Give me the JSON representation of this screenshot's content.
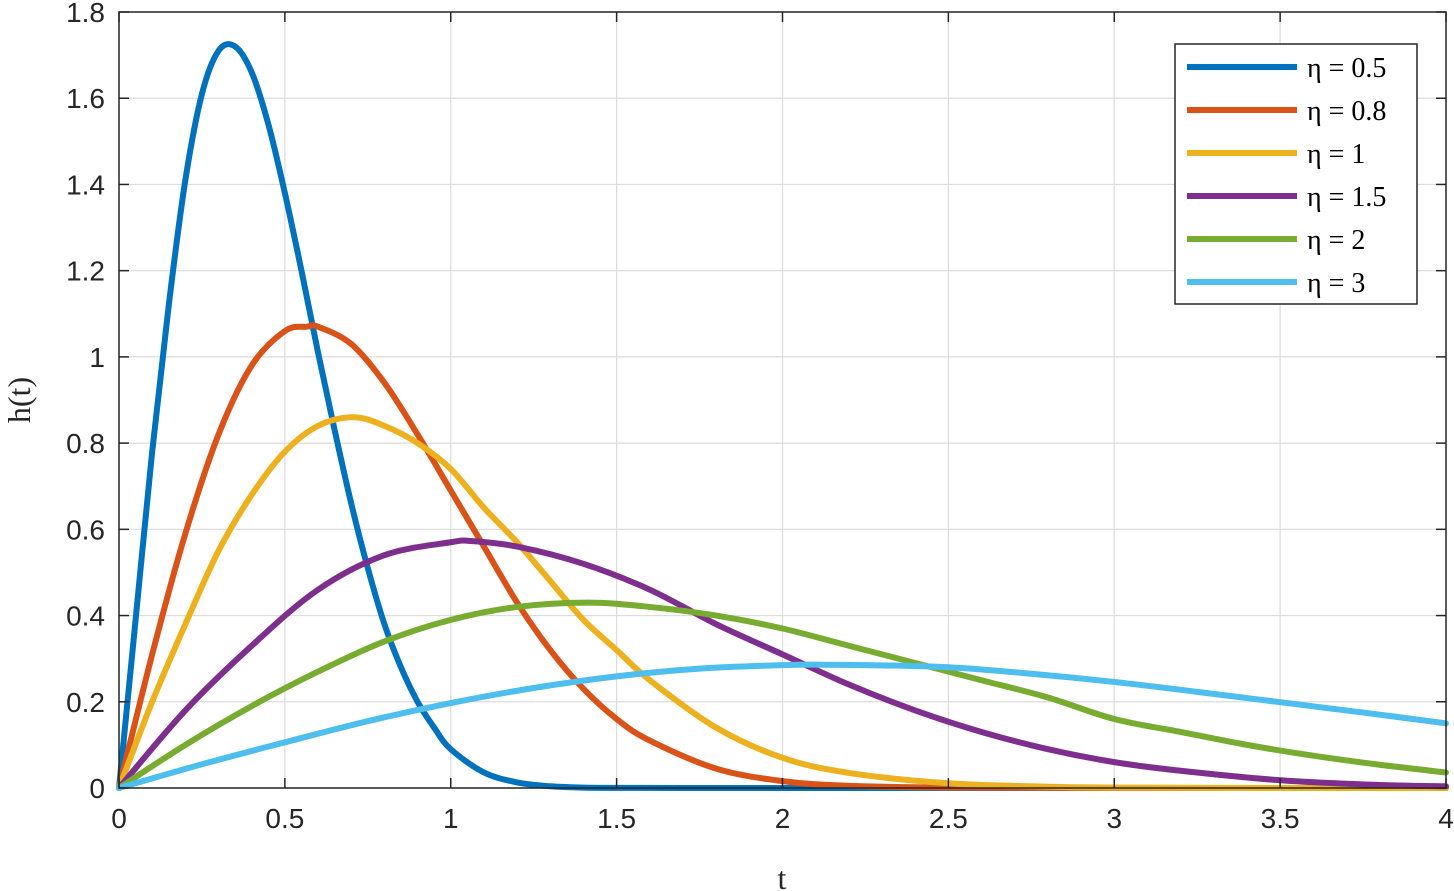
{
  "chart_data": {
    "type": "line",
    "title": "",
    "xlabel": "t",
    "ylabel": "h(t)",
    "xlim": [
      0,
      4
    ],
    "ylim": [
      0,
      1.8
    ],
    "xticks": [
      0,
      0.5,
      1,
      1.5,
      2,
      2.5,
      3,
      3.5,
      4
    ],
    "xtick_labels": [
      "0",
      "0.5",
      "1",
      "1.5",
      "2",
      "2.5",
      "3",
      "3.5",
      "4"
    ],
    "yticks": [
      0,
      0.2,
      0.4,
      0.6,
      0.8,
      1,
      1.2,
      1.4,
      1.6,
      1.8
    ],
    "ytick_labels": [
      "0",
      "0.2",
      "0.4",
      "0.6",
      "0.8",
      "1",
      "1.2",
      "1.4",
      "1.6",
      "1.8"
    ],
    "grid": true,
    "legend_position": "top-right",
    "series": [
      {
        "name": "η = 0.5",
        "color": "#0072BD",
        "x": [
          0,
          0.05,
          0.1,
          0.15,
          0.2,
          0.25,
          0.3,
          0.35,
          0.4,
          0.45,
          0.5,
          0.55,
          0.6,
          0.65,
          0.7,
          0.75,
          0.8,
          0.85,
          0.9,
          0.95,
          1.0,
          1.1,
          1.2,
          1.3,
          1.4,
          1.5,
          1.7,
          2.0,
          2.5,
          3.0,
          3.5,
          4.0
        ],
        "y": [
          0,
          0.39,
          0.78,
          1.12,
          1.41,
          1.61,
          1.71,
          1.72,
          1.66,
          1.54,
          1.38,
          1.2,
          1.01,
          0.83,
          0.66,
          0.51,
          0.38,
          0.28,
          0.2,
          0.14,
          0.09,
          0.036,
          0.013,
          0.004,
          0.001,
          0.0003,
          0,
          0,
          0,
          0,
          0,
          0
        ]
      },
      {
        "name": "η = 0.8",
        "color": "#D95319",
        "x": [
          0,
          0.1,
          0.2,
          0.3,
          0.4,
          0.5,
          0.566,
          0.6,
          0.7,
          0.8,
          0.9,
          1.0,
          1.1,
          1.2,
          1.3,
          1.4,
          1.5,
          1.6,
          1.8,
          2.0,
          2.2,
          2.5,
          3.0,
          3.5,
          4.0
        ],
        "y": [
          0,
          0.31,
          0.59,
          0.82,
          0.98,
          1.06,
          1.07,
          1.07,
          1.03,
          0.94,
          0.82,
          0.69,
          0.56,
          0.43,
          0.32,
          0.23,
          0.16,
          0.11,
          0.045,
          0.016,
          0.005,
          0.001,
          0,
          0,
          0
        ],
        "note_unused": ""
      },
      {
        "name": "η = 1",
        "color": "#EDB120",
        "x": [
          0,
          0.1,
          0.2,
          0.3,
          0.4,
          0.5,
          0.6,
          0.7071,
          0.8,
          0.9,
          1.0,
          1.1,
          1.2,
          1.3,
          1.4,
          1.5,
          1.6,
          1.8,
          2.0,
          2.2,
          2.5,
          2.8,
          3.0,
          3.5,
          4.0
        ],
        "y": [
          0,
          0.2,
          0.38,
          0.55,
          0.68,
          0.78,
          0.84,
          0.86,
          0.84,
          0.8,
          0.74,
          0.65,
          0.57,
          0.48,
          0.39,
          0.32,
          0.25,
          0.14,
          0.07,
          0.035,
          0.011,
          0.003,
          0.001,
          0,
          0
        ]
      },
      {
        "name": "η = 1.5",
        "color": "#7E2F8E",
        "x": [
          0,
          0.2,
          0.4,
          0.6,
          0.8,
          1.0,
          1.06,
          1.2,
          1.4,
          1.6,
          1.8,
          2.0,
          2.2,
          2.4,
          2.6,
          2.8,
          3.0,
          3.2,
          3.5,
          3.8,
          4.0
        ],
        "y": [
          0,
          0.18,
          0.33,
          0.46,
          0.54,
          0.57,
          0.573,
          0.56,
          0.52,
          0.46,
          0.38,
          0.31,
          0.24,
          0.18,
          0.13,
          0.09,
          0.06,
          0.04,
          0.018,
          0.007,
          0.004
        ]
      },
      {
        "name": "η = 2",
        "color": "#77AC30",
        "x": [
          0,
          0.2,
          0.4,
          0.6,
          0.8,
          1.0,
          1.2,
          1.414,
          1.6,
          1.8,
          2.0,
          2.2,
          2.4,
          2.6,
          2.8,
          3.0,
          3.2,
          3.4,
          3.6,
          3.8,
          4.0
        ],
        "y": [
          0,
          0.1,
          0.19,
          0.27,
          0.34,
          0.39,
          0.42,
          0.43,
          0.42,
          0.4,
          0.37,
          0.33,
          0.29,
          0.25,
          0.21,
          0.16,
          0.13,
          0.1,
          0.075,
          0.054,
          0.036
        ]
      },
      {
        "name": "η = 3",
        "color": "#4DBEEE",
        "x": [
          0,
          0.25,
          0.5,
          0.75,
          1.0,
          1.25,
          1.5,
          1.75,
          2.0,
          2.121,
          2.25,
          2.5,
          2.75,
          3.0,
          3.25,
          3.5,
          3.75,
          4.0
        ],
        "y": [
          0,
          0.055,
          0.106,
          0.155,
          0.197,
          0.232,
          0.259,
          0.277,
          0.285,
          0.286,
          0.285,
          0.28,
          0.265,
          0.246,
          0.223,
          0.199,
          0.175,
          0.15
        ]
      }
    ]
  }
}
